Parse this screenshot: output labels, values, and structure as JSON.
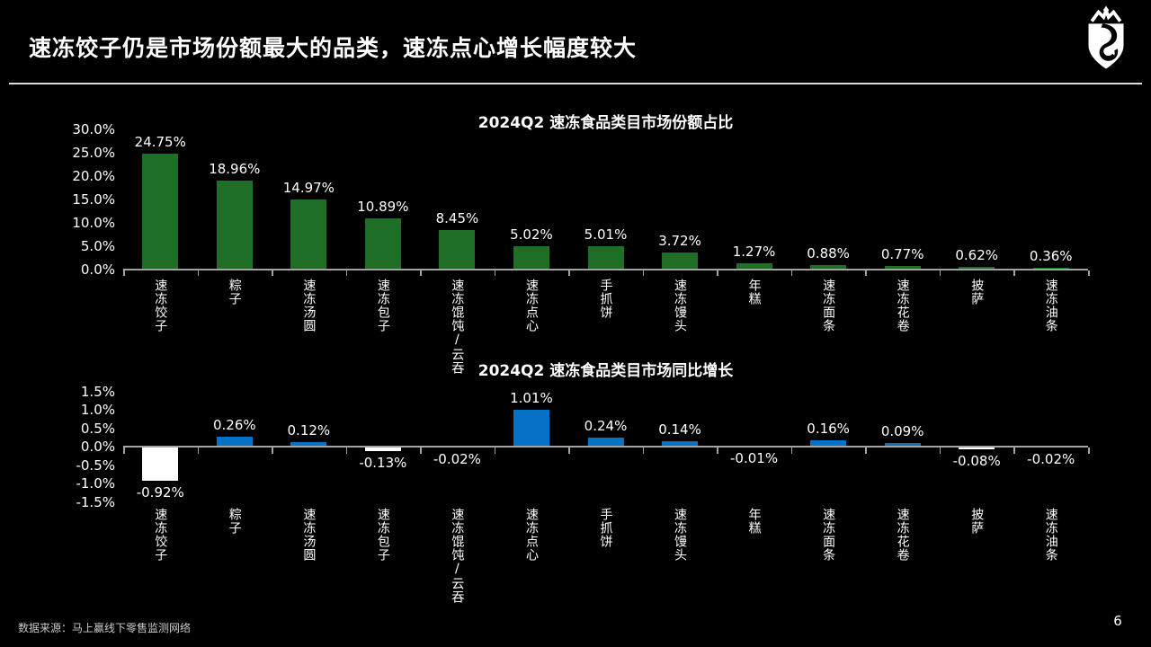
{
  "page": {
    "title": "速冻饺子仍是市场份额最大的品类，速冻点心增长幅度较大",
    "source": "数据来源：马上赢线下零售监测网络",
    "page_number": "6",
    "logo_icon": "shield-crown-logo"
  },
  "colors": {
    "background": "#000000",
    "share_bar": "#1e6e26",
    "growth_bar_positive": "#0572c6",
    "growth_bar_negative": "#ffffff",
    "axis": "#a3a3a3",
    "text": "#ffffff"
  },
  "chart_data": [
    {
      "type": "bar",
      "title": "2024Q2 速冻食品类目市场份额占比",
      "categories": [
        "速冻饺子",
        "粽子",
        "速冻汤圆",
        "速冻包子",
        "速冻馄饨/云吞",
        "速冻点心",
        "手抓饼",
        "速冻馒头",
        "年糕",
        "速冻面条",
        "速冻花卷",
        "披萨",
        "速冻油条"
      ],
      "values": [
        24.75,
        18.96,
        14.97,
        10.89,
        8.45,
        5.02,
        5.01,
        3.72,
        1.27,
        0.88,
        0.77,
        0.62,
        0.36
      ],
      "value_labels": [
        "24.75%",
        "18.96%",
        "14.97%",
        "10.89%",
        "8.45%",
        "5.02%",
        "5.01%",
        "3.72%",
        "1.27%",
        "0.88%",
        "0.77%",
        "0.62%",
        "0.36%"
      ],
      "bar_color": "#1e6e26",
      "ylim": [
        0,
        30
      ],
      "yticks": [
        {
          "label": "30.0%",
          "value": 30
        },
        {
          "label": "25.0%",
          "value": 25
        },
        {
          "label": "20.0%",
          "value": 20
        },
        {
          "label": "15.0%",
          "value": 15
        },
        {
          "label": "10.0%",
          "value": 10
        },
        {
          "label": "5.0%",
          "value": 5
        },
        {
          "label": "0.0%",
          "value": 0
        }
      ],
      "grid": false,
      "legend": "none"
    },
    {
      "type": "bar",
      "title": "2024Q2 速冻食品类目市场同比增长",
      "categories": [
        "速冻饺子",
        "粽子",
        "速冻汤圆",
        "速冻包子",
        "速冻馄饨/云吞",
        "速冻点心",
        "手抓饼",
        "速冻馒头",
        "年糕",
        "速冻面条",
        "速冻花卷",
        "披萨",
        "速冻油条"
      ],
      "values": [
        -0.92,
        0.26,
        0.12,
        -0.13,
        -0.02,
        1.01,
        0.24,
        0.14,
        -0.01,
        0.16,
        0.09,
        -0.08,
        -0.02
      ],
      "value_labels": [
        "-0.92%",
        "0.26%",
        "0.12%",
        "-0.13%",
        "-0.02%",
        "1.01%",
        "0.24%",
        "0.14%",
        "-0.01%",
        "0.16%",
        "0.09%",
        "-0.08%",
        "-0.02%"
      ],
      "positive_color": "#0572c6",
      "negative_color": "#ffffff",
      "ylim": [
        -1.5,
        1.5
      ],
      "yticks": [
        {
          "label": "1.5%",
          "value": 1.5
        },
        {
          "label": "1.0%",
          "value": 1.0
        },
        {
          "label": "0.5%",
          "value": 0.5
        },
        {
          "label": "0.0%",
          "value": 0
        },
        {
          "label": "-0.5%",
          "value": -0.5
        },
        {
          "label": "-1.0%",
          "value": -1.0
        },
        {
          "label": "-1.5%",
          "value": -1.5
        }
      ],
      "grid": false,
      "legend": "none"
    }
  ]
}
